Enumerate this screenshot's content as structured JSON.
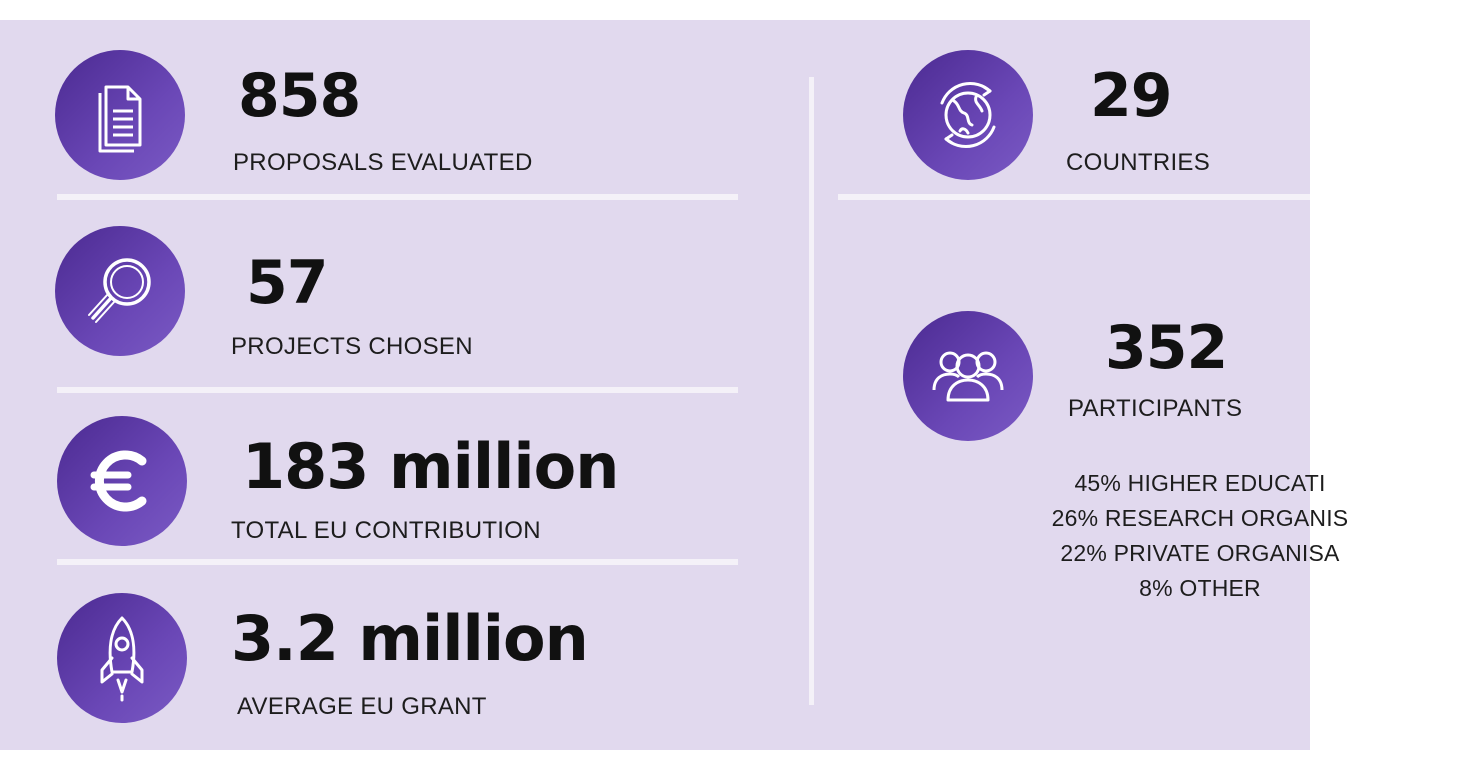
{
  "colors": {
    "panel_background": "#e1d9ee",
    "icon_circle": "#5b39a8",
    "divider": "#f4f1f8",
    "text": "#111111"
  },
  "stats": [
    {
      "icon": "document-icon",
      "value": "858",
      "label": "PROPOSALS EVALUATED"
    },
    {
      "icon": "magnifier-icon",
      "value": "57",
      "label": "PROJECTS CHOSEN"
    },
    {
      "icon": "euro-icon",
      "value": "183 million",
      "label": "TOTAL EU CONTRIBUTION"
    },
    {
      "icon": "rocket-icon",
      "value": "3.2 million",
      "label": "AVERAGE EU GRANT"
    },
    {
      "icon": "globe-icon",
      "value": "29",
      "label": "COUNTRIES"
    },
    {
      "icon": "people-icon",
      "value": "352",
      "label": "PARTICIPANTS"
    }
  ],
  "participant_breakdown": [
    "45% HIGHER EDUCATI",
    "26% RESEARCH ORGANIS",
    "22% PRIVATE ORGANISA",
    "8% OTHER"
  ]
}
